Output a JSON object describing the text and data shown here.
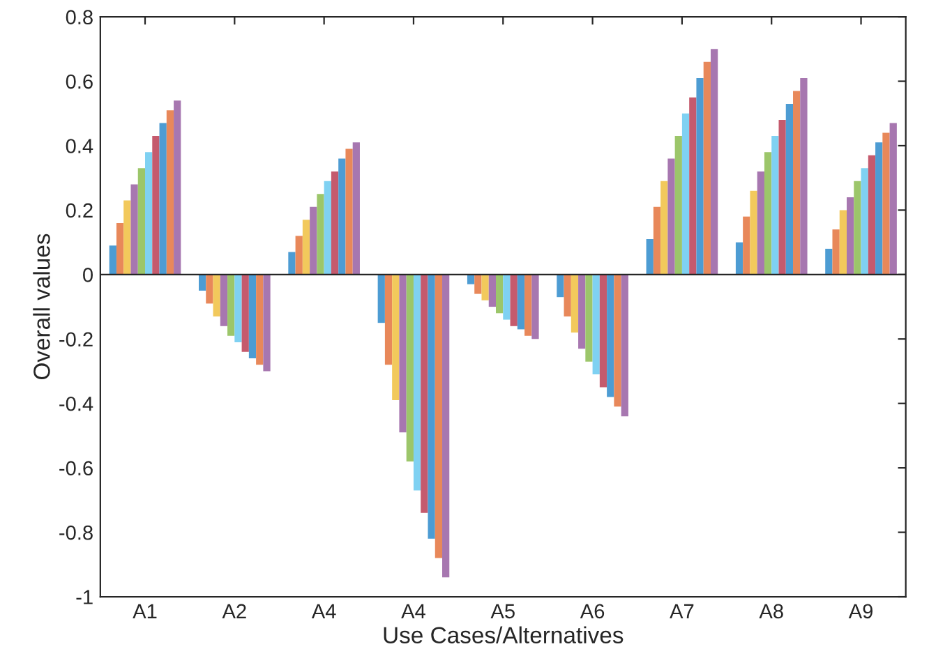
{
  "chart_data": {
    "type": "bar",
    "xlabel": "Use Cases/Alternatives",
    "ylabel": "Overall values",
    "categories": [
      "A1",
      "A2",
      "A4",
      "A4",
      "A5",
      "A6",
      "A7",
      "A8",
      "A9"
    ],
    "ylim": [
      -1,
      0.8
    ],
    "yticks": [
      -1,
      -0.8,
      -0.6,
      -0.4,
      -0.2,
      0,
      0.2,
      0.4,
      0.6,
      0.8
    ],
    "grid": false,
    "ref_lines": [
      {
        "axis": "y",
        "value": 0,
        "color": "#262626"
      }
    ],
    "series": [
      {
        "color": "#4d9cd3",
        "values": [
          0.09,
          -0.05,
          0.07,
          -0.15,
          -0.03,
          -0.07,
          0.11,
          0.1,
          0.08
        ]
      },
      {
        "color": "#e8885a",
        "values": [
          0.16,
          -0.09,
          0.12,
          -0.28,
          -0.06,
          -0.13,
          0.21,
          0.18,
          0.14
        ]
      },
      {
        "color": "#f2c95c",
        "values": [
          0.23,
          -0.13,
          0.17,
          -0.39,
          -0.08,
          -0.18,
          0.29,
          0.26,
          0.2
        ]
      },
      {
        "color": "#a777b0",
        "values": [
          0.28,
          -0.16,
          0.21,
          -0.49,
          -0.1,
          -0.23,
          0.36,
          0.32,
          0.24
        ]
      },
      {
        "color": "#9cc66a",
        "values": [
          0.33,
          -0.19,
          0.25,
          -0.58,
          -0.12,
          -0.27,
          0.43,
          0.38,
          0.29
        ]
      },
      {
        "color": "#7fd1f2",
        "values": [
          0.38,
          -0.21,
          0.29,
          -0.67,
          -0.14,
          -0.31,
          0.5,
          0.43,
          0.33
        ]
      },
      {
        "color": "#c55a6d",
        "values": [
          0.43,
          -0.24,
          0.32,
          -0.74,
          -0.16,
          -0.35,
          0.55,
          0.48,
          0.37
        ]
      },
      {
        "color": "#4d9cd3",
        "values": [
          0.47,
          -0.26,
          0.36,
          -0.82,
          -0.17,
          -0.38,
          0.61,
          0.53,
          0.41
        ]
      },
      {
        "color": "#e8885a",
        "values": [
          0.51,
          -0.28,
          0.39,
          -0.88,
          -0.19,
          -0.41,
          0.66,
          0.57,
          0.44
        ]
      },
      {
        "color": "#a777b0",
        "values": [
          0.54,
          -0.3,
          0.41,
          -0.94,
          -0.2,
          -0.44,
          0.7,
          0.61,
          0.47
        ]
      }
    ]
  }
}
